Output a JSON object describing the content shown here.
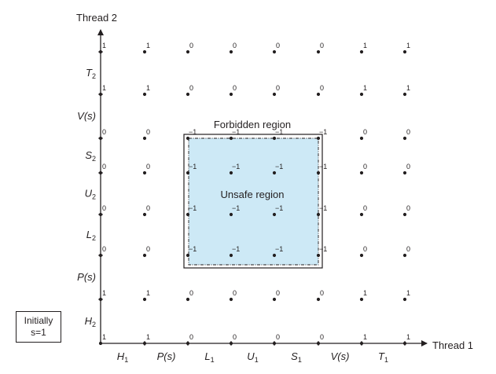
{
  "axes": {
    "y_title": "Thread 2",
    "x_title": "Thread 1"
  },
  "x_labels": [
    {
      "main": "H",
      "sub": "1"
    },
    {
      "main": "P(s)",
      "sub": ""
    },
    {
      "main": "L",
      "sub": "1"
    },
    {
      "main": "U",
      "sub": "1"
    },
    {
      "main": "S",
      "sub": "1"
    },
    {
      "main": "V(s)",
      "sub": ""
    },
    {
      "main": "T",
      "sub": "1"
    }
  ],
  "y_labels": [
    {
      "main": "H",
      "sub": "2"
    },
    {
      "main": "P(s)",
      "sub": ""
    },
    {
      "main": "L",
      "sub": "2"
    },
    {
      "main": "U",
      "sub": "2"
    },
    {
      "main": "S",
      "sub": "2"
    },
    {
      "main": "V(s)",
      "sub": ""
    },
    {
      "main": "T",
      "sub": "2"
    }
  ],
  "grid_values": [
    [
      "1",
      "1",
      "0",
      "0",
      "0",
      "0",
      "1",
      "1"
    ],
    [
      "1",
      "1",
      "0",
      "0",
      "0",
      "0",
      "1",
      "1"
    ],
    [
      "0",
      "0",
      "−1",
      "−1",
      "−1",
      "−1",
      "0",
      "0"
    ],
    [
      "0",
      "0",
      "−1",
      "−1",
      "−1",
      "−1",
      "0",
      "0"
    ],
    [
      "0",
      "0",
      "−1",
      "−1",
      "−1",
      "−1",
      "0",
      "0"
    ],
    [
      "0",
      "0",
      "−1",
      "−1",
      "−1",
      "−1",
      "0",
      "0"
    ],
    [
      "1",
      "1",
      "0",
      "0",
      "0",
      "0",
      "1",
      "1"
    ],
    [
      "1",
      "1",
      "0",
      "0",
      "0",
      "0",
      "1",
      "1"
    ]
  ],
  "regions": {
    "forbidden": "Forbidden region",
    "unsafe": "Unsafe region"
  },
  "initial": {
    "line1": "Initially",
    "line2": "s=1"
  },
  "colors": {
    "ink": "#231f20",
    "unsafe_fill": "#cde9f6"
  }
}
